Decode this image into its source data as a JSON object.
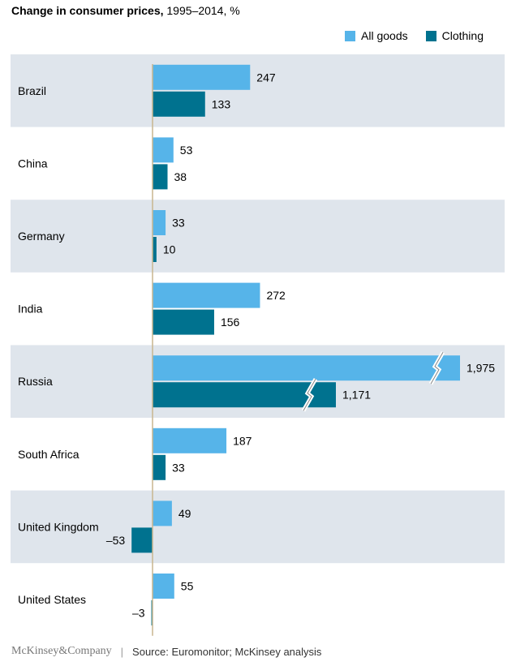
{
  "title_bold": "Change in consumer prices,",
  "title_rest": " 1995–2014, %",
  "legend": [
    {
      "label": "All goods",
      "color": "#56b4e9"
    },
    {
      "label": "Clothing",
      "color": "#00728f"
    }
  ],
  "colors": {
    "band": "#dfe5ec",
    "axis": "#c8b68f",
    "all_goods": "#56b4e9",
    "clothing": "#00728f"
  },
  "footer": {
    "brand": "McKinsey&Company",
    "separator": "|",
    "source": "Source: Euromonitor; McKinsey analysis"
  },
  "chart_data": {
    "type": "bar",
    "orientation": "horizontal",
    "title": "Change in consumer prices, 1995–2014, %",
    "categories": [
      "Brazil",
      "China",
      "Germany",
      "India",
      "Russia",
      "South Africa",
      "United Kingdom",
      "United States"
    ],
    "series": [
      {
        "name": "All goods",
        "values": [
          247,
          53,
          33,
          272,
          1975,
          187,
          49,
          55
        ],
        "labels": [
          "247",
          "53",
          "33",
          "272",
          "1,975",
          "187",
          "49",
          "55"
        ]
      },
      {
        "name": "Clothing",
        "values": [
          133,
          38,
          10,
          156,
          1171,
          33,
          -53,
          -3
        ],
        "labels": [
          "133",
          "38",
          "10",
          "156",
          "1,171",
          "33",
          "–53",
          "–3"
        ]
      }
    ],
    "axis_break": {
      "category": "Russia",
      "note": "bars truncated with break marks"
    },
    "alternating_bands": true
  }
}
